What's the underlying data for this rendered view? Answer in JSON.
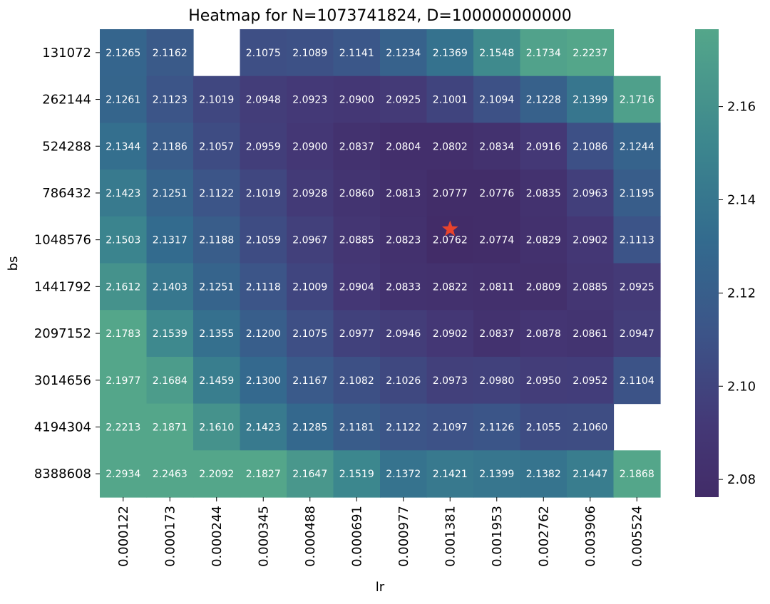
{
  "chart_data": {
    "type": "heatmap",
    "title": "Heatmap for N=1073741824, D=100000000000",
    "xlabel": "lr",
    "ylabel": "bs",
    "x_categories": [
      "0.000122",
      "0.000173",
      "0.000244",
      "0.000345",
      "0.000488",
      "0.000691",
      "0.000977",
      "0.001381",
      "0.001953",
      "0.002762",
      "0.003906",
      "0.005524"
    ],
    "y_categories": [
      "131072",
      "262144",
      "524288",
      "786432",
      "1048576",
      "1441792",
      "2097152",
      "3014656",
      "4194304",
      "8388608"
    ],
    "values": [
      [
        2.1265,
        2.1162,
        null,
        2.1075,
        2.1089,
        2.1141,
        2.1234,
        2.1369,
        2.1548,
        2.1734,
        2.2237,
        null
      ],
      [
        2.1261,
        2.1123,
        2.1019,
        2.0948,
        2.0923,
        2.09,
        2.0925,
        2.1001,
        2.1094,
        2.1228,
        2.1399,
        2.1716
      ],
      [
        2.1344,
        2.1186,
        2.1057,
        2.0959,
        2.09,
        2.0837,
        2.0804,
        2.0802,
        2.0834,
        2.0916,
        2.1086,
        2.1244
      ],
      [
        2.1423,
        2.1251,
        2.1122,
        2.1019,
        2.0928,
        2.086,
        2.0813,
        2.0777,
        2.0776,
        2.0835,
        2.0963,
        2.1195
      ],
      [
        2.1503,
        2.1317,
        2.1188,
        2.1059,
        2.0967,
        2.0885,
        2.0823,
        2.0762,
        2.0774,
        2.0829,
        2.0902,
        2.1113
      ],
      [
        2.1612,
        2.1403,
        2.1251,
        2.1118,
        2.1009,
        2.0904,
        2.0833,
        2.0822,
        2.0811,
        2.0809,
        2.0885,
        2.0925
      ],
      [
        2.1783,
        2.1539,
        2.1355,
        2.12,
        2.1075,
        2.0977,
        2.0946,
        2.0902,
        2.0837,
        2.0878,
        2.0861,
        2.0947
      ],
      [
        2.1977,
        2.1684,
        2.1459,
        2.13,
        2.1167,
        2.1082,
        2.1026,
        2.0973,
        2.098,
        2.095,
        2.0952,
        2.1104
      ],
      [
        2.2213,
        2.1871,
        2.161,
        2.1423,
        2.1285,
        2.1181,
        2.1122,
        2.1097,
        2.1126,
        2.1055,
        2.106,
        null
      ],
      [
        2.2934,
        2.2463,
        2.2092,
        2.1827,
        2.1647,
        2.1519,
        2.1372,
        2.1421,
        2.1399,
        2.1382,
        2.1447,
        2.1868
      ]
    ],
    "color_range": [
      2.0762,
      2.1766
    ],
    "colorbar_ticks": [
      2.08,
      2.1,
      2.12,
      2.14,
      2.16
    ],
    "colormap": "crest (dark purple to teal green)",
    "colors": {
      "low": "#422c68",
      "high": "#54a68a",
      "star": "#e8432c"
    },
    "marker": {
      "symbol": "star",
      "x": "0.001381",
      "y": "1048576"
    }
  }
}
